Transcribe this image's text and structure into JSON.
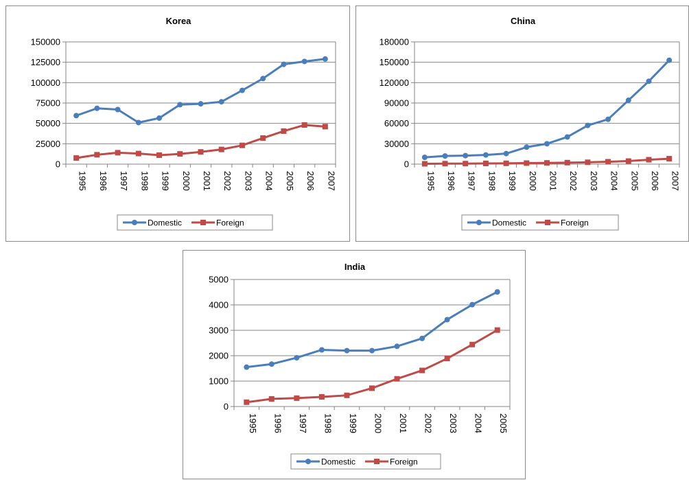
{
  "chart_data": [
    {
      "type": "line",
      "title": "Korea",
      "categories": [
        "1995",
        "1996",
        "1997",
        "1998",
        "1999",
        "2000",
        "2001",
        "2002",
        "2003",
        "2004",
        "2005",
        "2006",
        "2007"
      ],
      "ylim": [
        0,
        150000
      ],
      "yticks": [
        "0",
        "25000",
        "50000",
        "75000",
        "100000",
        "125000",
        "150000"
      ],
      "grid": true,
      "legend": "bottom",
      "series": [
        {
          "name": "Domestic",
          "color": "#4a7ebb",
          "marker": "circle",
          "values": [
            59500,
            68500,
            67000,
            51000,
            56500,
            73000,
            74000,
            76500,
            90500,
            105000,
            122500,
            126000,
            129000
          ]
        },
        {
          "name": "Foreign",
          "color": "#be4b48",
          "marker": "square",
          "values": [
            7500,
            11500,
            14000,
            13000,
            11000,
            12500,
            15000,
            18000,
            23000,
            32000,
            40500,
            48000,
            46000
          ]
        }
      ]
    },
    {
      "type": "line",
      "title": "China",
      "categories": [
        "1995",
        "1996",
        "1997",
        "1998",
        "1999",
        "2000",
        "2001",
        "2002",
        "2003",
        "2004",
        "2005",
        "2006",
        "2007"
      ],
      "ylim": [
        0,
        180000
      ],
      "yticks": [
        "0",
        "30000",
        "60000",
        "90000",
        "120000",
        "150000",
        "180000"
      ],
      "grid": true,
      "legend": "bottom",
      "series": [
        {
          "name": "Domestic",
          "color": "#4a7ebb",
          "marker": "circle",
          "values": [
            10000,
            12000,
            12500,
            13500,
            15500,
            25000,
            30000,
            40000,
            57000,
            66000,
            94000,
            122000,
            153000
          ]
        },
        {
          "name": "Foreign",
          "color": "#be4b48",
          "marker": "square",
          "values": [
            500,
            700,
            800,
            1000,
            1200,
            1500,
            1800,
            2200,
            2700,
            3500,
            4500,
            6500,
            8000
          ]
        }
      ]
    },
    {
      "type": "line",
      "title": "India",
      "categories": [
        "1995",
        "1996",
        "1997",
        "1998",
        "1999",
        "2000",
        "2001",
        "2002",
        "2003",
        "2004",
        "2005"
      ],
      "ylim": [
        0,
        5000
      ],
      "yticks": [
        "0",
        "1000",
        "2000",
        "3000",
        "4000",
        "5000"
      ],
      "grid": true,
      "legend": "bottom",
      "series": [
        {
          "name": "Domestic",
          "color": "#4a7ebb",
          "marker": "circle",
          "values": [
            1550,
            1670,
            1920,
            2230,
            2200,
            2200,
            2370,
            2680,
            3420,
            4010,
            4510
          ]
        },
        {
          "name": "Foreign",
          "color": "#be4b48",
          "marker": "square",
          "values": [
            170,
            300,
            330,
            380,
            440,
            720,
            1090,
            1420,
            1890,
            2440,
            3010
          ]
        }
      ]
    }
  ]
}
